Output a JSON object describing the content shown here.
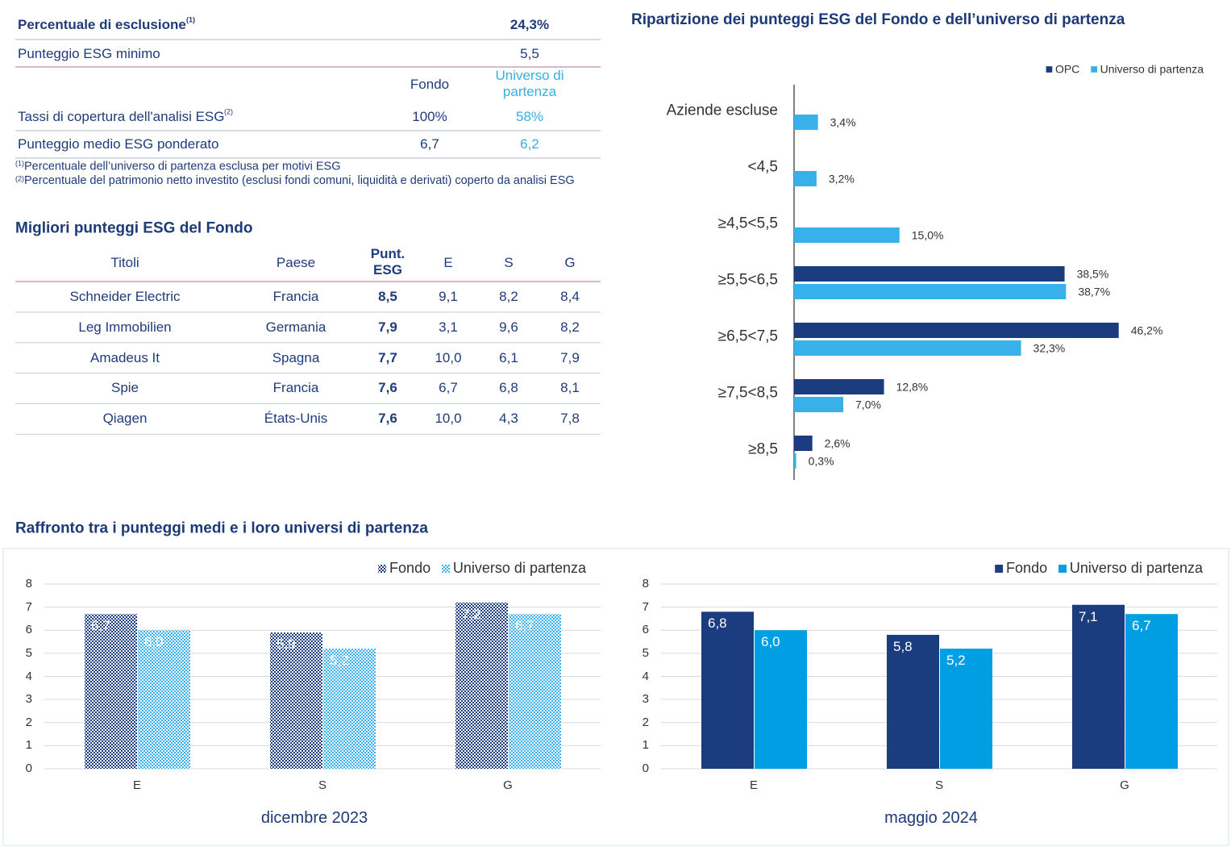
{
  "summary": {
    "rows": [
      {
        "label": "Percentuale di esclusione",
        "note": "(1)",
        "value": "24,3%"
      },
      {
        "label": "Punteggio ESG minimo",
        "value": "5,5"
      }
    ],
    "columns": [
      "Fondo",
      "Universo di partenza"
    ],
    "coverage_rows": [
      {
        "label": "Tassi di copertura dell'analisi ESG",
        "note": "(2)",
        "values": [
          "100%",
          "58%"
        ]
      },
      {
        "label": "Punteggio medio ESG ponderato",
        "values": [
          "6,7",
          "6,2"
        ]
      }
    ],
    "footnotes": [
      {
        "mark": "(1)",
        "text": "Percentuale dell’universo di partenza esclusa per motivi ESG"
      },
      {
        "mark": "(2)",
        "text": "Percentuale del patrimonio netto investito (esclusi fondi comuni, liquidità e derivati) coperto da analisi ESG"
      }
    ]
  },
  "best_scores": {
    "title": "Migliori punteggi ESG del Fondo",
    "headers": [
      "Titoli",
      "Paese",
      "Punt. ESG",
      "E",
      "S",
      "G"
    ],
    "rows": [
      [
        "Schneider Electric",
        "Francia",
        "8,5",
        "9,1",
        "8,2",
        "8,4"
      ],
      [
        "Leg Immobilien",
        "Germania",
        "7,9",
        "3,1",
        "9,6",
        "8,2"
      ],
      [
        "Amadeus It",
        "Spagna",
        "7,7",
        "10,0",
        "6,1",
        "7,9"
      ],
      [
        "Spie",
        "Francia",
        "7,6",
        "6,7",
        "6,8",
        "8,1"
      ],
      [
        "Qiagen",
        "États-Unis",
        "7,6",
        "10,0",
        "4,3",
        "7,8"
      ]
    ]
  },
  "comparison_title": "Raffronto tra i punteggi medi e i loro universi di partenza",
  "chart_data": [
    {
      "type": "barh",
      "title": "Ripartizione dei punteggi ESG del Fondo e dell’universo di partenza",
      "categories": [
        "Aziende escluse",
        "<4,5",
        "≥4,5<5,5",
        "≥5,5<6,5",
        "≥6,5<7,5",
        "≥7,5<8,5",
        "≥8,5"
      ],
      "series": [
        {
          "name": "OPC",
          "color": "#1b3c7e",
          "values": [
            null,
            null,
            null,
            38.5,
            46.2,
            12.8,
            2.6
          ],
          "value_labels": [
            null,
            null,
            null,
            "38,5%",
            "46,2%",
            "12,8%",
            "2,6%"
          ]
        },
        {
          "name": "Universo di partenza",
          "color": "#38b0ea",
          "values": [
            3.4,
            3.2,
            15.0,
            38.7,
            32.3,
            7.0,
            0.3
          ],
          "value_labels": [
            "3,4%",
            "3,2%",
            "15,0%",
            "38,7%",
            "32,3%",
            "7,0%",
            "0,3%"
          ]
        }
      ],
      "xlim": [
        0,
        60
      ],
      "legend": "top-right"
    },
    {
      "type": "bar",
      "xlabel": "dicembre 2023",
      "fill": "pattern",
      "categories": [
        "E",
        "S",
        "G"
      ],
      "series": [
        {
          "name": "Fondo",
          "color": "#1b3c7e",
          "values": [
            6.7,
            5.9,
            7.2
          ],
          "value_labels": [
            "6,7",
            "5,9",
            "7,2"
          ]
        },
        {
          "name": "Universo di partenza",
          "color": "#38b0ea",
          "values": [
            6.0,
            5.2,
            6.7
          ],
          "value_labels": [
            "6,0",
            "5,2",
            "6,7"
          ]
        }
      ],
      "ylim": [
        0,
        8
      ],
      "yticks": [
        0,
        1,
        2,
        3,
        4,
        5,
        6,
        7,
        8
      ],
      "grid": true,
      "legend": "top-right"
    },
    {
      "type": "bar",
      "xlabel": "maggio 2024",
      "fill": "solid",
      "categories": [
        "E",
        "S",
        "G"
      ],
      "series": [
        {
          "name": "Fondo",
          "color": "#1b3c7e",
          "values": [
            6.8,
            5.8,
            7.1
          ],
          "value_labels": [
            "6,8",
            "5,8",
            "7,1"
          ]
        },
        {
          "name": "Universo di partenza",
          "color": "#009fe3",
          "values": [
            6.0,
            5.2,
            6.7
          ],
          "value_labels": [
            "6,0",
            "5,2",
            "6,7"
          ]
        }
      ],
      "ylim": [
        0,
        8
      ],
      "yticks": [
        0,
        1,
        2,
        3,
        4,
        5,
        6,
        7,
        8
      ],
      "grid": true,
      "legend": "top-right"
    }
  ]
}
